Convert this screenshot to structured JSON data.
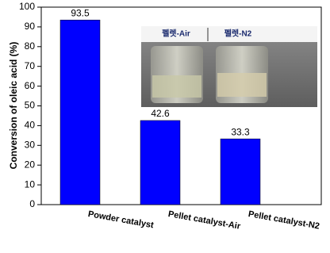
{
  "chart_data": {
    "type": "bar",
    "y_label": "Conversion of oleic acid (%)",
    "categories": [
      "Powder catalyst",
      "Pellet catalyst-Air",
      "Pellet catalyst-N2"
    ],
    "values": [
      93.5,
      42.6,
      33.3
    ],
    "color": "#0000ff",
    "ylim": [
      0,
      100
    ],
    "yticks": [
      0,
      10,
      20,
      30,
      40,
      50,
      60,
      70,
      80,
      90,
      100
    ],
    "inset_labels": [
      "펠렛-Air",
      "펠렛-N2"
    ]
  }
}
